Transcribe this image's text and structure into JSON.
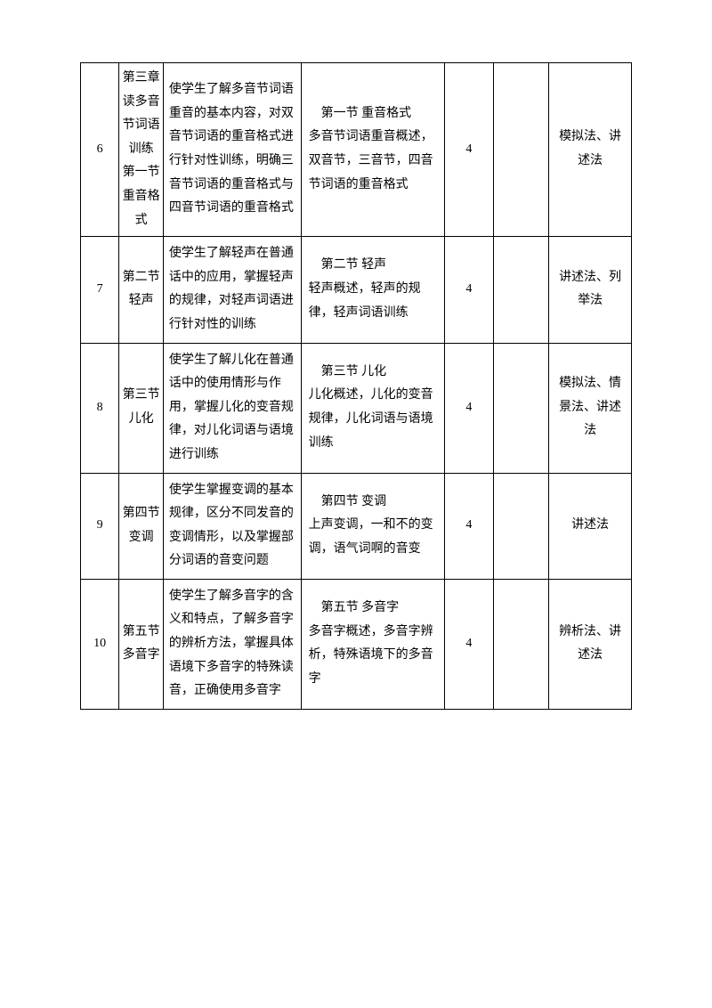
{
  "rows": [
    {
      "num": "6",
      "title": "第三章 读多音节词语训练 第一节 重音格式",
      "goal": "使学生了解多音节词语重音的基本内容，对双音节词语的重音格式进行针对性训练，明确三音节词语的重音格式与四音节词语的重音格式",
      "content_first": "第一节 重音格式",
      "content_rest": "多音节词语重音概述，双音节，三音节，四音节词语的重音格式",
      "hours": "4",
      "method": "模拟法、讲述法"
    },
    {
      "num": "7",
      "title": "第二节 轻声",
      "goal": "使学生了解轻声在普通话中的应用，掌握轻声的规律，对轻声词语进行针对性的训练",
      "content_first": "第二节 轻声",
      "content_rest": "轻声概述，轻声的规律，轻声词语训练",
      "hours": "4",
      "method": "讲述法、列举法"
    },
    {
      "num": "8",
      "title": "第三节 儿化",
      "goal": "使学生了解儿化在普通话中的使用情形与作用，掌握儿化的变音规律，对儿化词语与语境进行训练",
      "content_first": "第三节 儿化",
      "content_rest": "儿化概述，儿化的变音规律，儿化词语与语境训练",
      "hours": "4",
      "method": "模拟法、情景法、讲述法"
    },
    {
      "num": "9",
      "title": "第四节 变调",
      "goal": "使学生掌握变调的基本规律，区分不同发音的变调情形，以及掌握部分词语的音变问题",
      "content_first": "第四节 变调",
      "content_rest": "上声变调，一和不的变调，语气词啊的音变",
      "hours": "4",
      "method": "讲述法"
    },
    {
      "num": "10",
      "title": "第五节 多音字",
      "goal": "使学生了解多音字的含义和特点，了解多音字的辨析方法，掌握具体语境下多音字的特殊读音，正确使用多音字",
      "content_first": "第五节 多音字",
      "content_rest": "多音字概述，多音字辨析，特殊语境下的多音字",
      "hours": "4",
      "method": "辨析法、讲述法"
    }
  ]
}
